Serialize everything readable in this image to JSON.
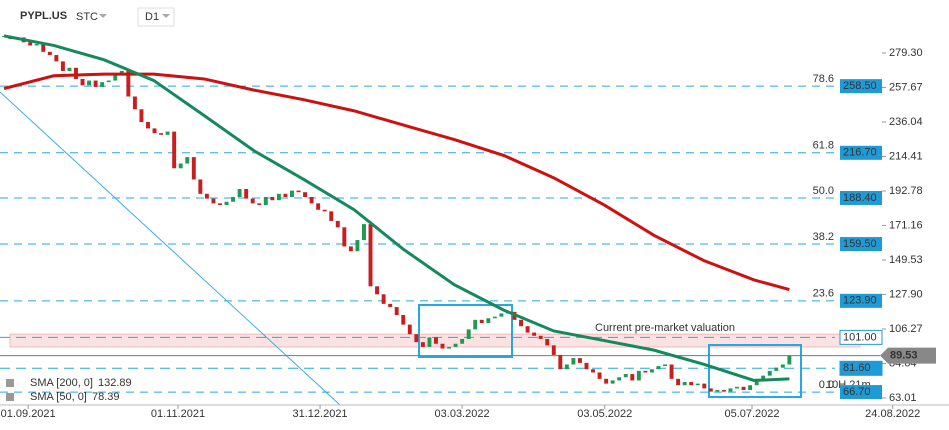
{
  "chart_data": {
    "type": "candlestick",
    "symbol": "PYPL.US",
    "asset_class": "STC",
    "timeframe": "D1",
    "annotation": "Current pre-market valuation",
    "countdown": "10H 21m",
    "up_color": "#1f9a55",
    "down_color": "#c81e1e",
    "xlim": [
      0,
      145
    ],
    "xticks": [
      {
        "value": 4.3,
        "label": "01.09.2021"
      },
      {
        "value": 27.2,
        "label": "01.11.2021"
      },
      {
        "value": 48.9,
        "label": "31.12.2021"
      },
      {
        "value": 70.6,
        "label": "03.03.2022"
      },
      {
        "value": 92.4,
        "label": "03.05.2022"
      },
      {
        "value": 114.9,
        "label": "05.07.2022"
      },
      {
        "value": 136.4,
        "label": "24.08.2022"
      }
    ],
    "ylim": [
      58.6,
      312.5
    ],
    "yticks": [
      {
        "value": 279.3,
        "label": "279.30"
      },
      {
        "value": 257.67,
        "label": "257.67"
      },
      {
        "value": 236.04,
        "label": "236.04"
      },
      {
        "value": 214.41,
        "label": "214.41"
      },
      {
        "value": 192.78,
        "label": "192.78"
      },
      {
        "value": 171.16,
        "label": "171.16"
      },
      {
        "value": 149.53,
        "label": "149.53"
      },
      {
        "value": 127.9,
        "label": "127.90"
      },
      {
        "value": 106.27,
        "label": "106.27"
      },
      {
        "value": 84.64,
        "label": "84.64"
      },
      {
        "value": 63.01,
        "label": "63.01"
      }
    ],
    "closes": [
      290,
      288,
      289,
      286,
      284,
      285,
      280,
      278,
      274,
      268,
      270,
      263,
      259,
      262,
      258,
      261,
      262,
      266,
      268,
      252,
      244,
      236,
      232,
      229,
      228,
      230,
      207,
      210,
      214,
      200,
      191,
      188,
      185,
      184,
      186,
      189,
      194,
      188,
      185,
      184,
      189,
      187,
      191,
      189,
      193,
      192,
      189,
      185,
      181,
      180,
      174,
      170,
      158,
      155,
      162,
      172,
      133,
      128,
      122,
      120,
      115,
      109,
      103,
      98,
      95,
      101,
      97,
      94,
      95,
      97,
      100,
      106,
      112,
      110,
      113,
      114,
      116,
      117,
      112,
      108,
      104,
      102,
      100,
      96,
      90,
      81,
      84,
      88,
      85,
      81,
      79,
      75,
      72,
      74,
      76,
      78,
      74,
      80,
      79,
      81,
      83,
      84,
      75,
      71,
      73,
      71,
      72,
      69,
      67,
      68,
      67,
      69,
      70,
      68,
      71,
      74,
      77,
      80,
      82,
      84,
      89.53
    ],
    "series": [
      {
        "name": "SMA [200, 0]",
        "last": 132.89,
        "color": "#cc1111",
        "x": [
          0,
          7.6,
          15.3,
          22.9,
          30.6,
          38.2,
          45.8,
          53.5,
          61.1,
          68.8,
          76.4,
          84,
          91.7,
          99.3,
          107,
          114.6,
          120
        ],
        "values": [
          257,
          265,
          266,
          266,
          263,
          256,
          250,
          243,
          234,
          225,
          215,
          201,
          184,
          165,
          149,
          137,
          131
        ]
      },
      {
        "name": "SMA [50, 0]",
        "last": 78.39,
        "color": "#148a5c",
        "x": [
          0,
          7.6,
          15.3,
          22.9,
          30.6,
          38.2,
          45.8,
          53.5,
          61.1,
          68.8,
          76.4,
          84,
          91.7,
          99.3,
          107,
          114.6,
          120
        ],
        "values": [
          290,
          284,
          275,
          262,
          240,
          218,
          200,
          181,
          156,
          134,
          118,
          105,
          99,
          93,
          84,
          74,
          75
        ]
      }
    ],
    "fib_levels": [
      {
        "ratio": "78.6",
        "value": 258.5,
        "label": "258.50"
      },
      {
        "ratio": "61.8",
        "value": 216.7,
        "label": "216.70"
      },
      {
        "ratio": "50.0",
        "value": 188.4,
        "label": "188.40"
      },
      {
        "ratio": "38.2",
        "value": 159.5,
        "label": "159.50"
      },
      {
        "ratio": "23.6",
        "value": 123.9,
        "label": "123.90"
      },
      {
        "ratio": "0.0",
        "value": 66.7,
        "label": "66.70"
      }
    ],
    "levels": [
      {
        "value": 101,
        "label": "101.00"
      },
      {
        "value": 81.6,
        "label": "81.60"
      }
    ],
    "zone": [
      95,
      103
    ],
    "current_price": 89.53
  }
}
